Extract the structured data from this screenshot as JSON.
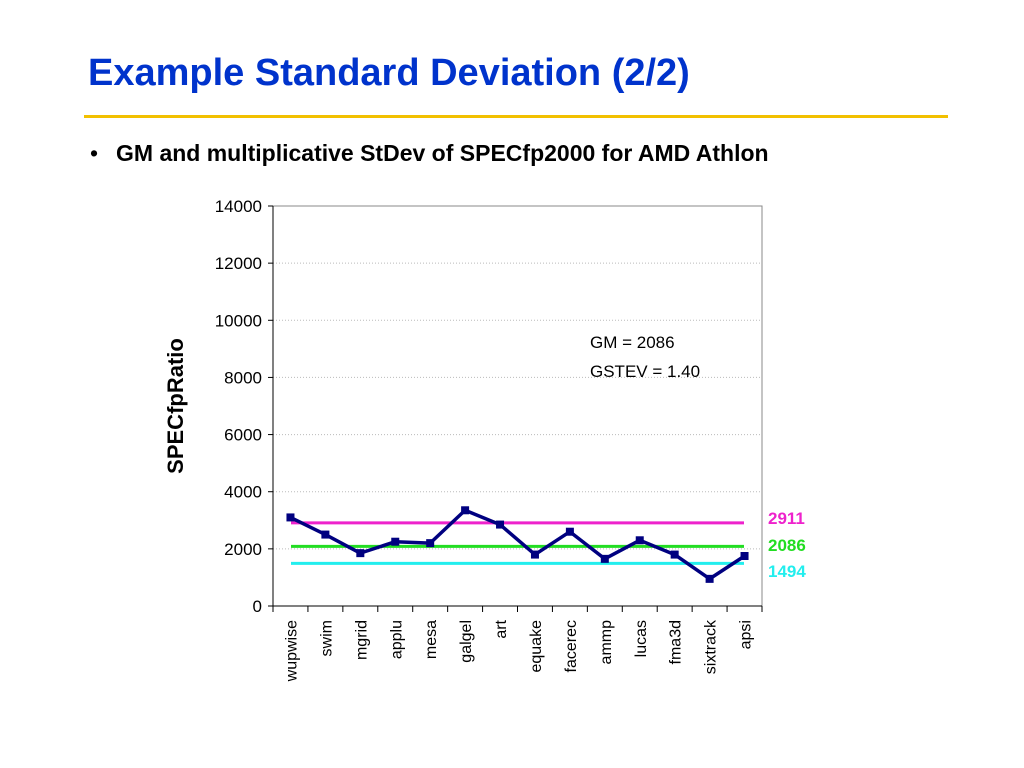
{
  "slide": {
    "title": "Example Standard Deviation (2/2)",
    "bullet": "GM and multiplicative StDev of SPECfp2000 for AMD Athlon"
  },
  "chart_data": {
    "type": "line",
    "title": "",
    "xlabel": "",
    "ylabel": "SPECfpRatio",
    "ylim": [
      0,
      14000
    ],
    "yticks": [
      0,
      2000,
      4000,
      6000,
      8000,
      10000,
      12000,
      14000
    ],
    "grid": true,
    "categories": [
      "wupwise",
      "swim",
      "mgrid",
      "applu",
      "mesa",
      "galgel",
      "art",
      "equake",
      "facerec",
      "ammp",
      "lucas",
      "fma3d",
      "sixtrack",
      "apsi"
    ],
    "series": [
      {
        "values": [
          3100,
          2500,
          1850,
          2250,
          2200,
          3350,
          2850,
          1800,
          2600,
          1650,
          2300,
          1800,
          950,
          1750
        ],
        "color": "#000080"
      }
    ],
    "reference_lines": [
      {
        "label": "2911",
        "value": 2911,
        "color": "#ee22cc"
      },
      {
        "label": "2086",
        "value": 2086,
        "color": "#22dd22"
      },
      {
        "label": "1494",
        "value": 1494,
        "color": "#22eeee"
      }
    ],
    "annotations": [
      "GM = 2086",
      "GSTEV = 1.40"
    ]
  }
}
